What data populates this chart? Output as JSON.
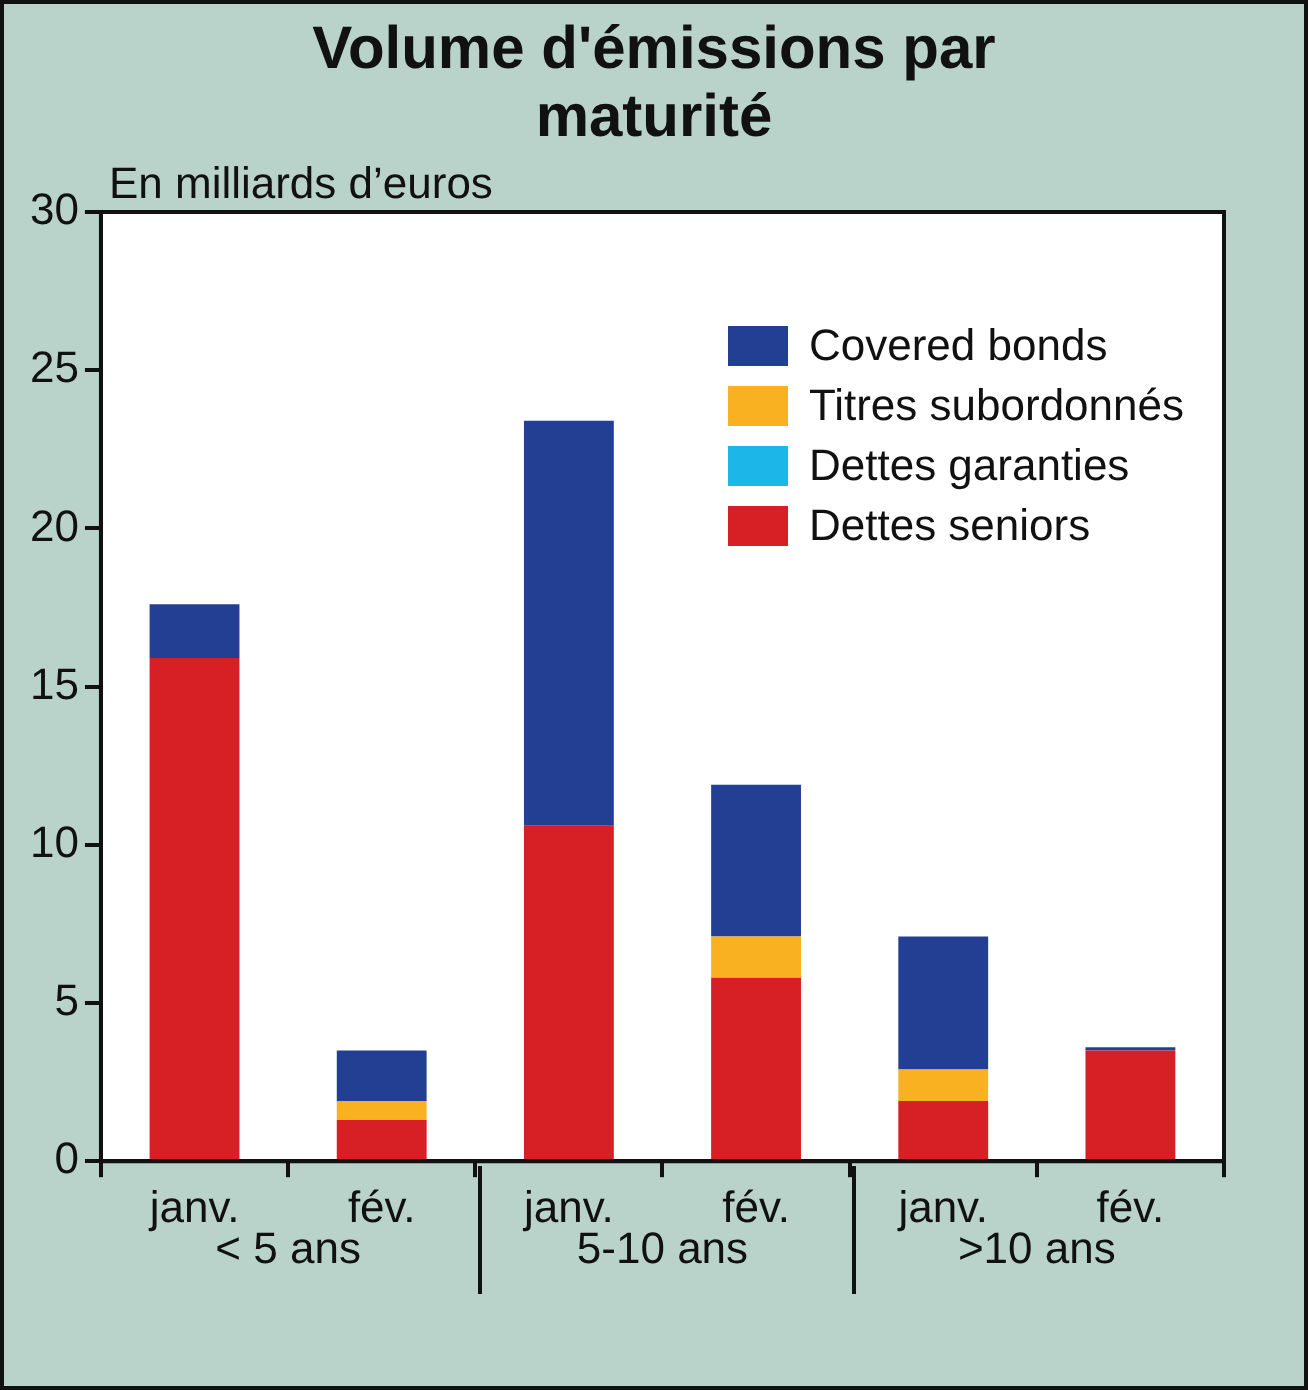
{
  "chart_data": {
    "type": "bar",
    "title": "Volume d'émissions par maturité",
    "ylabel": "En milliards d’euros",
    "categories": [
      "janv.",
      "fév.",
      "janv.",
      "fév.",
      "janv.",
      "fév."
    ],
    "annotations": [
      "< 5 ans",
      "5-10 ans",
      ">10 ans"
    ],
    "stacked": true,
    "ylim": [
      0,
      30
    ],
    "yticks": [
      0,
      5,
      10,
      15,
      20,
      25,
      30
    ],
    "grid": false,
    "legend": "top right",
    "series": [
      {
        "name": "Dettes seniors",
        "color": "#d71f26",
        "values": [
          15.9,
          1.3,
          10.6,
          5.8,
          1.9,
          3.5
        ]
      },
      {
        "name": "Dettes garanties",
        "color": "#1cb6e8",
        "values": [
          0,
          0,
          0,
          0,
          0,
          0
        ]
      },
      {
        "name": "Titres subordonnés",
        "color": "#f9b121",
        "values": [
          0,
          0.6,
          0,
          1.3,
          1.0,
          0
        ]
      },
      {
        "name": "Covered bonds",
        "color": "#233f93",
        "values": [
          1.7,
          1.6,
          12.8,
          4.8,
          4.2,
          0.1
        ]
      }
    ]
  }
}
